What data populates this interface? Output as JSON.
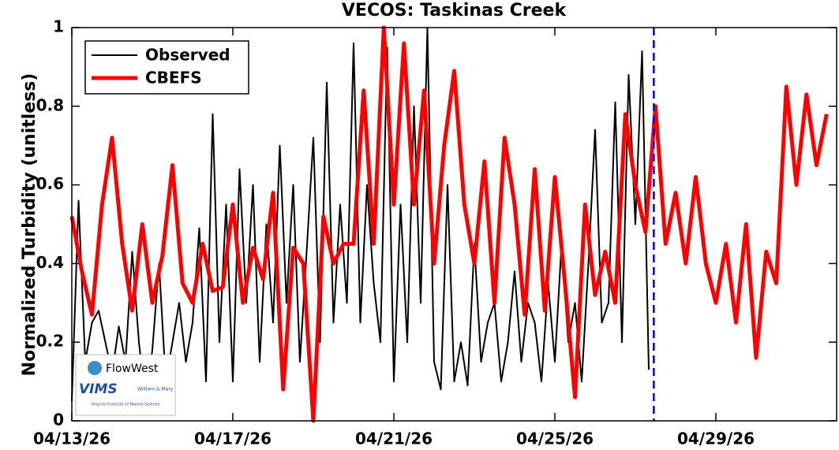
{
  "chart_data": {
    "type": "line",
    "title": "VECOS: Taskinas Creek",
    "ylabel": "Normalized Turbidity (unitless)",
    "xlim": [
      "04/13/26 00:00",
      "05/02/26 00:00"
    ],
    "xticks": [
      {
        "value": "04/13/26 00:00",
        "label": "04/13/26"
      },
      {
        "value": "04/17/26 00:00",
        "label": "04/17/26"
      },
      {
        "value": "04/21/26 00:00",
        "label": "04/21/26"
      },
      {
        "value": "04/25/26 00:00",
        "label": "04/25/26"
      },
      {
        "value": "04/29/26 00:00",
        "label": "04/29/26"
      }
    ],
    "ylim": [
      0,
      1
    ],
    "yticks": [
      0,
      0.2,
      0.4,
      0.6,
      0.8,
      1
    ],
    "legend": "upper left",
    "vline": {
      "x": "04/27/26 11:00",
      "color": "#0000ee"
    },
    "logos": [
      "FlowWest",
      "VIMS",
      "William & Mary",
      "Virginia Institute of Marine Science"
    ],
    "series": [
      {
        "name": "Observed",
        "color": "#000000",
        "width": 2,
        "step_hours": 4,
        "start": "04/13/26 00:00",
        "values": [
          0.05,
          0.56,
          0.15,
          0.25,
          0.28,
          0.2,
          0.12,
          0.24,
          0.15,
          0.43,
          0.2,
          0.05,
          0.18,
          0.4,
          0.1,
          0.2,
          0.3,
          0.15,
          0.25,
          0.49,
          0.1,
          0.78,
          0.2,
          0.55,
          0.1,
          0.64,
          0.3,
          0.6,
          0.15,
          0.5,
          0.25,
          0.7,
          0.3,
          0.6,
          0.15,
          0.43,
          0.72,
          0.2,
          0.86,
          0.25,
          0.55,
          0.3,
          0.96,
          0.25,
          0.6,
          0.35,
          0.2,
          0.95,
          0.1,
          0.55,
          0.2,
          0.8,
          0.3,
          1.0,
          0.15,
          0.08,
          0.6,
          0.1,
          0.2,
          0.09,
          0.45,
          0.15,
          0.25,
          0.3,
          0.1,
          0.2,
          0.38,
          0.15,
          0.3,
          0.25,
          0.1,
          0.35,
          0.15,
          0.45,
          0.2,
          0.3,
          0.1,
          0.4,
          0.74,
          0.25,
          0.3,
          0.81,
          0.2,
          0.88,
          0.5,
          0.94,
          0.13
        ]
      },
      {
        "name": "CBEFS",
        "color": "#ff0000",
        "width": 5,
        "step_hours": 6,
        "start": "04/13/26 00:00",
        "values": [
          0.52,
          0.38,
          0.27,
          0.55,
          0.72,
          0.45,
          0.28,
          0.5,
          0.3,
          0.42,
          0.65,
          0.35,
          0.3,
          0.45,
          0.33,
          0.34,
          0.55,
          0.3,
          0.44,
          0.36,
          0.58,
          0.08,
          0.44,
          0.4,
          0.0,
          0.52,
          0.4,
          0.45,
          0.45,
          0.84,
          0.45,
          1.0,
          0.55,
          0.96,
          0.55,
          0.84,
          0.4,
          0.7,
          0.89,
          0.55,
          0.4,
          0.66,
          0.3,
          0.72,
          0.55,
          0.27,
          0.64,
          0.28,
          0.62,
          0.35,
          0.06,
          0.55,
          0.32,
          0.43,
          0.3,
          0.78,
          0.6,
          0.48,
          0.8,
          0.45,
          0.58,
          0.4,
          0.62,
          0.4,
          0.3,
          0.45,
          0.25,
          0.5,
          0.16,
          0.43,
          0.35,
          0.85,
          0.6,
          0.83,
          0.65,
          0.78
        ]
      }
    ]
  }
}
